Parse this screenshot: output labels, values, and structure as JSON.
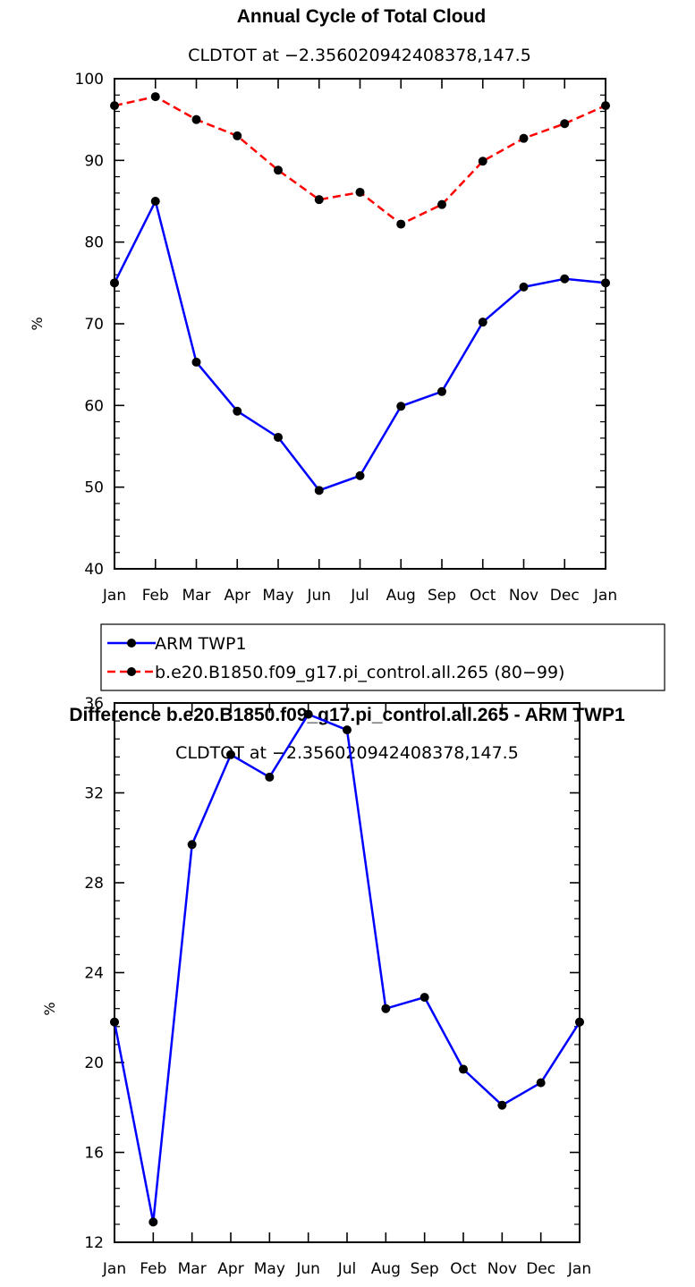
{
  "chart_data": [
    {
      "type": "line",
      "title": "Annual Cycle of Total Cloud",
      "subtitle": "CLDTOT at −2.356020942408378,147.5",
      "xlabel": "",
      "ylabel": "%",
      "categories": [
        "Jan",
        "Feb",
        "Mar",
        "Apr",
        "May",
        "Jun",
        "Jul",
        "Aug",
        "Sep",
        "Oct",
        "Nov",
        "Dec",
        "Jan"
      ],
      "ylim": [
        40,
        100
      ],
      "yticks": [
        40,
        50,
        60,
        70,
        80,
        90,
        100
      ],
      "series": [
        {
          "name": "ARM TWP1",
          "color": "#0000ff",
          "dashed": false,
          "values": [
            75.0,
            85.0,
            65.3,
            59.3,
            56.1,
            49.6,
            51.4,
            59.9,
            61.7,
            70.2,
            74.5,
            75.5,
            75.0
          ]
        },
        {
          "name": "b.e20.B1850.f09_g17.pi_control.all.265 (80−99)",
          "color": "#ff0000",
          "dashed": true,
          "values": [
            96.7,
            97.8,
            95.0,
            93.0,
            88.8,
            85.2,
            86.1,
            82.2,
            84.6,
            89.9,
            92.7,
            94.5,
            96.7
          ]
        }
      ],
      "legend_position": "below"
    },
    {
      "type": "line",
      "title": "Difference b.e20.B1850.f09_g17.pi_control.all.265 - ARM TWP1",
      "subtitle": "CLDTOT at −2.356020942408378,147.5",
      "xlabel": "",
      "ylabel": "%",
      "categories": [
        "Jan",
        "Feb",
        "Mar",
        "Apr",
        "May",
        "Jun",
        "Jul",
        "Aug",
        "Sep",
        "Oct",
        "Nov",
        "Dec",
        "Jan"
      ],
      "ylim": [
        12,
        36
      ],
      "yticks": [
        12,
        16,
        20,
        24,
        28,
        32,
        36
      ],
      "series": [
        {
          "name": "",
          "color": "#0000ff",
          "dashed": false,
          "values": [
            21.8,
            12.9,
            29.7,
            33.7,
            32.7,
            35.5,
            34.8,
            22.4,
            22.9,
            19.7,
            18.1,
            19.1,
            21.8
          ]
        }
      ]
    }
  ]
}
